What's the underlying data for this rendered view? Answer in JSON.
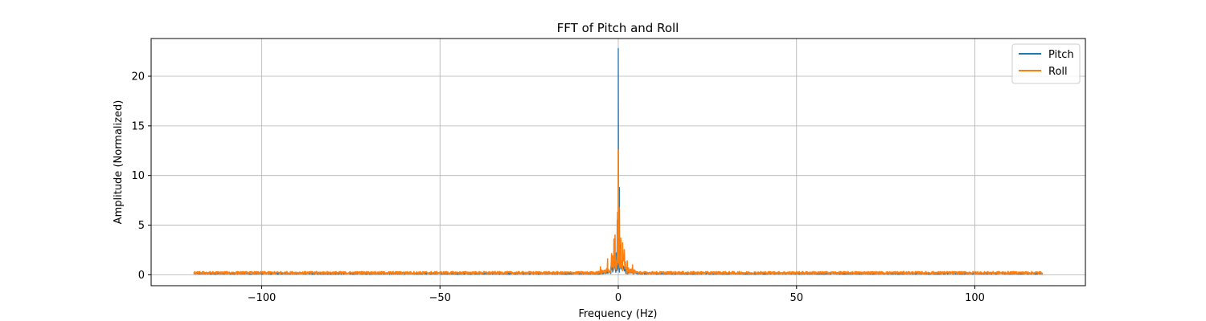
{
  "chart_data": {
    "type": "line",
    "title": "FFT of Pitch and Roll",
    "xlabel": "Frequency (Hz)",
    "ylabel": "Amplitude (Normalized)",
    "xlim": [
      -131,
      131
    ],
    "ylim": [
      -1.1,
      23.8
    ],
    "xticks": [
      -100,
      -50,
      0,
      50,
      100
    ],
    "xtick_labels": [
      "−100",
      "−50",
      "0",
      "50",
      "100"
    ],
    "yticks": [
      0,
      5,
      10,
      15,
      20
    ],
    "ytick_labels": [
      "0",
      "5",
      "10",
      "15",
      "20"
    ],
    "grid": true,
    "legend_position": "top-right",
    "x_range": [
      -119,
      119
    ],
    "series": [
      {
        "name": "Pitch",
        "color": "#1f77b4",
        "peaks": [
          {
            "x": 0.0,
            "y": 22.8
          },
          {
            "x": 0.3,
            "y": 8.8
          },
          {
            "x": -0.3,
            "y": 5.5
          },
          {
            "x": 0.6,
            "y": 3.0
          },
          {
            "x": -0.6,
            "y": 2.2
          }
        ],
        "noise_floor": 0.15
      },
      {
        "name": "Roll",
        "color": "#ff7f0e",
        "peaks": [
          {
            "x": 0.0,
            "y": 12.6
          },
          {
            "x": 0.2,
            "y": 6.8
          },
          {
            "x": -0.2,
            "y": 6.3
          },
          {
            "x": -0.9,
            "y": 4.0
          },
          {
            "x": -1.2,
            "y": 3.6
          },
          {
            "x": 0.7,
            "y": 3.7
          },
          {
            "x": 1.2,
            "y": 3.2
          },
          {
            "x": -3.0,
            "y": 1.6
          },
          {
            "x": 2.5,
            "y": 1.4
          },
          {
            "x": 4.0,
            "y": 1.0
          },
          {
            "x": -5.0,
            "y": 0.8
          }
        ],
        "noise_floor": 0.25
      }
    ]
  }
}
